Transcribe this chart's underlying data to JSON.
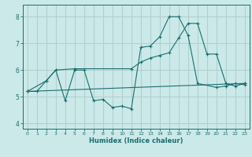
{
  "title": "",
  "xlabel": "Humidex (Indice chaleur)",
  "bg_color": "#cce9e9",
  "grid_color": "#b0d0d0",
  "line_color": "#1a6e6e",
  "xlim": [
    -0.5,
    23.5
  ],
  "ylim": [
    3.8,
    8.45
  ],
  "xticks": [
    0,
    1,
    2,
    3,
    4,
    5,
    6,
    7,
    8,
    9,
    10,
    11,
    12,
    13,
    14,
    15,
    16,
    17,
    18,
    19,
    20,
    21,
    22,
    23
  ],
  "yticks": [
    4,
    5,
    6,
    7,
    8
  ],
  "series1_x": [
    0,
    1,
    2,
    3,
    4,
    5,
    6,
    7,
    8,
    9,
    10,
    11,
    12,
    13,
    14,
    15,
    16,
    17,
    18,
    20,
    21,
    22,
    23
  ],
  "series1_y": [
    5.2,
    5.2,
    5.6,
    6.0,
    4.85,
    6.0,
    6.0,
    4.85,
    4.9,
    4.6,
    4.65,
    4.55,
    6.85,
    6.9,
    7.25,
    8.0,
    8.0,
    7.3,
    5.5,
    5.35,
    5.4,
    5.5,
    5.45
  ],
  "series2_x": [
    0,
    2,
    3,
    5,
    11,
    12,
    13,
    14,
    15,
    16,
    17,
    18,
    19,
    20,
    21,
    22,
    23
  ],
  "series2_y": [
    5.2,
    5.6,
    6.0,
    6.05,
    6.05,
    6.3,
    6.45,
    6.55,
    6.65,
    7.2,
    7.75,
    7.75,
    6.6,
    6.6,
    5.5,
    5.4,
    5.5
  ],
  "series3_x": [
    0,
    23
  ],
  "series3_y": [
    5.2,
    5.5
  ]
}
